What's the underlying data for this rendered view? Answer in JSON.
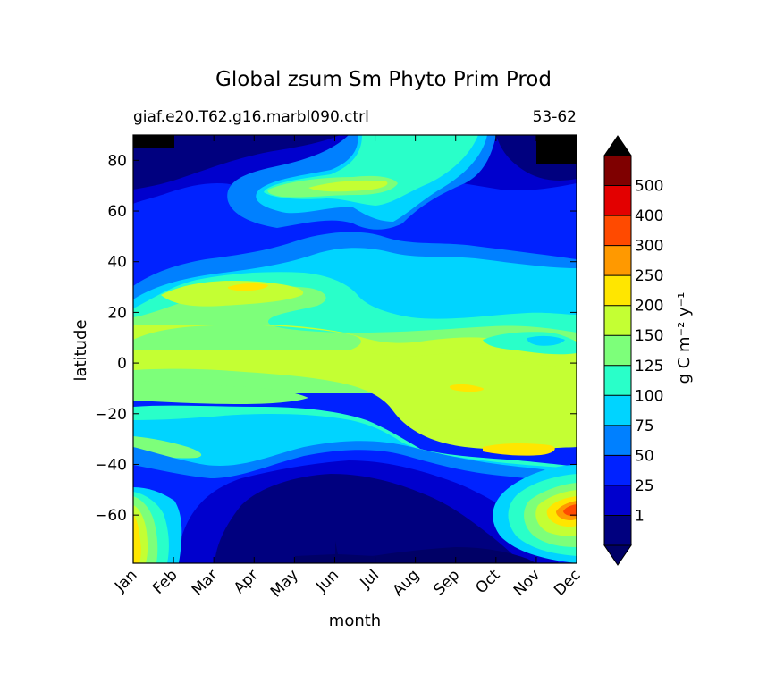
{
  "chart_data": {
    "type": "heatmap",
    "plot_kind": "filled-contour",
    "title": "Global zsum Sm Phyto Prim Prod",
    "subtitle_left": "giaf.e20.T62.g16.marbl090.ctrl",
    "subtitle_right": "53-62",
    "xlabel": "month",
    "ylabel": "latitude",
    "x_categories": [
      "Jan",
      "Feb",
      "Mar",
      "Apr",
      "May",
      "Jun",
      "Jul",
      "Aug",
      "Sep",
      "Oct",
      "Nov",
      "Dec"
    ],
    "y_ticks": [
      80,
      60,
      40,
      20,
      0,
      -20,
      -40,
      -60
    ],
    "ylim": [
      -79,
      90
    ],
    "colorbar": {
      "label": "g C m⁻² y⁻¹",
      "levels": [
        "1",
        "25",
        "50",
        "75",
        "100",
        "125",
        "150",
        "200",
        "250",
        "300",
        "400",
        "500"
      ],
      "extend": "both",
      "colors": [
        "#000066",
        "#00007f",
        "#0000cd",
        "#0022ff",
        "#0080ff",
        "#00d4ff",
        "#29ffc9",
        "#7dff7a",
        "#c4ff33",
        "#ffe600",
        "#ff9900",
        "#ff4a00",
        "#e30000",
        "#7f0000",
        "#000000"
      ]
    },
    "approx_values_by_latitude": [
      {
        "lat": 85,
        "Jan": 0,
        "Apr": 20,
        "Jul": 60,
        "Oct": 10,
        "Dec": 0
      },
      {
        "lat": 68,
        "Jan": 10,
        "Apr": 60,
        "Jun": 130,
        "Jul": 160,
        "Aug": 90,
        "Oct": 20,
        "Dec": 5
      },
      {
        "lat": 50,
        "Jan": 25,
        "Apr": 40,
        "Jul": 80,
        "Oct": 40,
        "Dec": 25
      },
      {
        "lat": 30,
        "Jan": 110,
        "Apr": 180,
        "Jul": 90,
        "Oct": 80,
        "Dec": 95
      },
      {
        "lat": 10,
        "Jan": 160,
        "Apr": 160,
        "Jul": 140,
        "Oct": 130,
        "Dec": 135
      },
      {
        "lat": -10,
        "Jan": 160,
        "Apr": 155,
        "Jul": 165,
        "Oct": 180,
        "Dec": 170
      },
      {
        "lat": -30,
        "Jan": 110,
        "Apr": 85,
        "Jul": 100,
        "Oct": 150,
        "Dec": 175
      },
      {
        "lat": -50,
        "Jan": 95,
        "Apr": 30,
        "Jul": 20,
        "Oct": 60,
        "Dec": 120
      },
      {
        "lat": -65,
        "Jan": 180,
        "Apr": 15,
        "Jul": 5,
        "Oct": 20,
        "Dec": 260
      }
    ]
  }
}
